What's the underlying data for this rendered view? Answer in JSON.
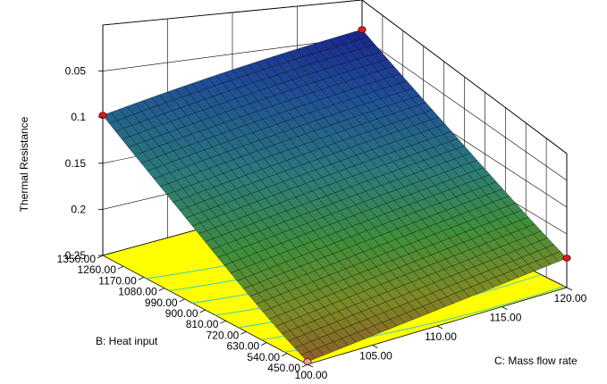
{
  "chart_data": {
    "type": "surface3d",
    "title": "",
    "axes": {
      "z": {
        "label": "Thermal Resistance",
        "ticks": [
          "0.05",
          "0.1",
          "0.15",
          "0.2",
          "0.25"
        ],
        "tick_values": [
          0.05,
          0.1,
          0.15,
          0.2,
          0.25
        ],
        "range": [
          0.25,
          0.0
        ],
        "reversed": true
      },
      "heat_input": {
        "label": "B: Heat input",
        "ticks": [
          "450.00",
          "540.00",
          "630.00",
          "720.00",
          "810.00",
          "900.00",
          "990.00",
          "1080.00",
          "1170.00",
          "1260.00",
          "1350.00"
        ],
        "tick_values": [
          450,
          540,
          630,
          720,
          810,
          900,
          990,
          1080,
          1170,
          1260,
          1350
        ],
        "range": [
          450,
          1350
        ]
      },
      "mass_flow": {
        "label": "C: Mass flow rate",
        "ticks": [
          "100.00",
          "105.00",
          "110.00",
          "115.00",
          "120.00"
        ],
        "tick_values": [
          100,
          105,
          110,
          115,
          120
        ],
        "range": [
          100,
          120
        ]
      }
    },
    "corner_points": [
      {
        "heat_input": 1350,
        "mass_flow": 100,
        "z": 0.098
      },
      {
        "heat_input": 1350,
        "mass_flow": 120,
        "z": 0.04
      },
      {
        "heat_input": 450,
        "mass_flow": 120,
        "z": 0.195
      },
      {
        "heat_input": 450,
        "mass_flow": 100,
        "z": 0.245
      }
    ],
    "grid": true,
    "floor_color": "#ffff00",
    "colormap": [
      "#1a1f8c",
      "#1e4f96",
      "#2a7a7c",
      "#3f8f3a",
      "#7d8a26",
      "#8f5a2a"
    ]
  }
}
